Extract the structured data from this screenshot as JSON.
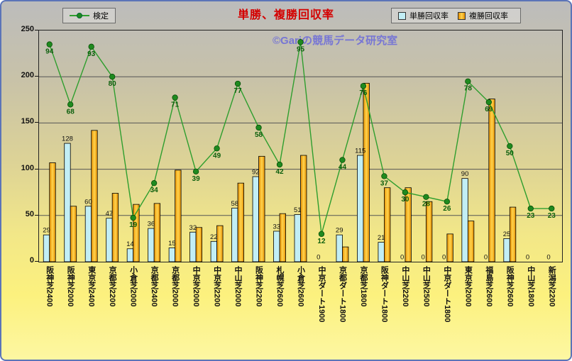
{
  "title": "単勝、複勝回収率",
  "watermark": "©Gariの競馬データ研究室",
  "legend": {
    "line_label": "検定",
    "win_label": "単勝回収率",
    "place_label": "複勝回収率"
  },
  "colors": {
    "title": "#d40000",
    "watermark": "#6f6fd8",
    "line": "#2e9e2e",
    "marker": "#1f8a1f",
    "win_fill": "#c2eef5",
    "win_stroke": "#000000",
    "place_dark": "#e68f00",
    "place_light": "#ffd34d",
    "place_stroke": "#000000",
    "grid": "#555555",
    "line_label_color": "#0b5e0b",
    "bar_label_color": "#111111"
  },
  "y_axis": {
    "tick_labels": [
      "0",
      "50",
      "100",
      "150",
      "200",
      "250"
    ]
  },
  "chart_data": {
    "type": "bar",
    "title": "単勝、複勝回収率",
    "categories": [
      "阪神芝2400",
      "阪神芝2000",
      "東京芝2400",
      "京都芝2200",
      "小倉芝2000",
      "京都芝2400",
      "京都芝2000",
      "中京芝2000",
      "中京芝2200",
      "中山芝2000",
      "阪神芝2200",
      "札幌芝2600",
      "小倉芝2600",
      "中京ダート1900",
      "京都ダート1800",
      "京都芝1800",
      "阪神ダート1800",
      "中山芝2200",
      "中山芝2500",
      "中京ダート1800",
      "東京芝2000",
      "福島芝2600",
      "阪神芝2600",
      "中山芝1800",
      "新潟芝2200"
    ],
    "series": [
      {
        "name": "検定",
        "type": "line",
        "axis": "secondary",
        "values": [
          94,
          68,
          93,
          80,
          19,
          34,
          71,
          39,
          49,
          77,
          58,
          42,
          95,
          12,
          44,
          76,
          37,
          30,
          28,
          26,
          78,
          69,
          50,
          23,
          23
        ]
      },
      {
        "name": "単勝回収率",
        "type": "bar",
        "axis": "primary",
        "values": [
          29,
          128,
          60,
          47,
          14,
          36,
          15,
          32,
          22,
          58,
          92,
          33,
          51,
          0,
          29,
          115,
          21,
          0,
          0,
          0,
          90,
          0,
          25,
          0,
          0
        ]
      },
      {
        "name": "複勝回収率",
        "type": "bar",
        "axis": "primary",
        "values": [
          107,
          60,
          142,
          74,
          62,
          63,
          99,
          37,
          39,
          85,
          114,
          52,
          115,
          0,
          16,
          193,
          80,
          80,
          65,
          30,
          44,
          176,
          59,
          0,
          0
        ]
      }
    ],
    "ylim": [
      0,
      250
    ],
    "yticks": [
      0,
      50,
      100,
      150,
      200,
      250
    ],
    "secondary_ylim": [
      0,
      100
    ],
    "grid": true,
    "legend_position": "top",
    "bar_labels_shown_for": "単勝回収率",
    "line_labels_shown_for": "検定"
  }
}
